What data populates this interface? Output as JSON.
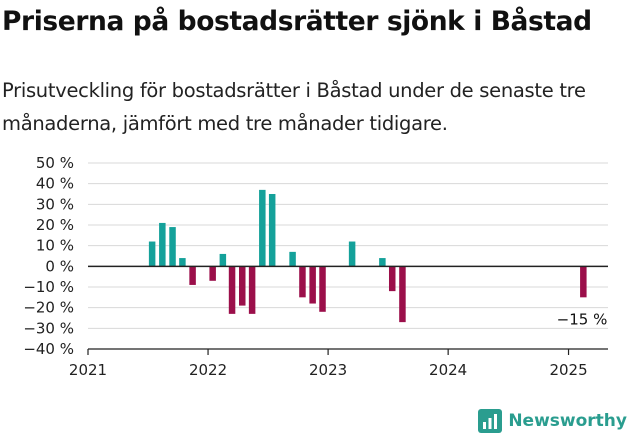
{
  "title": "Priserna på bostadsrätter sjönk i Båstad",
  "subtitle": "Prisutveckling för bostadsrätter i Båstad under de senaste tre månaderna, jämfört med tre månader tidigare.",
  "brand": {
    "name": "Newsworthy",
    "icon": "newsworthy-logo-icon",
    "color": "#2a9d8f"
  },
  "colors": {
    "positive": "#14a19a",
    "negative": "#9b0f4a",
    "grid": "#d8d8d8",
    "axis": "#222222"
  },
  "chart_data": {
    "type": "bar",
    "title": "Priserna på bostadsrätter sjönk i Båstad",
    "xlabel": "",
    "ylabel": "",
    "ylim": [
      -40,
      50
    ],
    "yticks": [
      50,
      40,
      30,
      20,
      10,
      0,
      -10,
      -20,
      -30,
      -40
    ],
    "ytick_labels": [
      "50 %",
      "40 %",
      "30 %",
      "20 %",
      "10 %",
      "0 %",
      "−10 %",
      "−20 %",
      "−30 %",
      "−40 %"
    ],
    "xlim": [
      "2021-01-01",
      "2025-05-01"
    ],
    "xticks": [
      "2021-01-01",
      "2022-01-01",
      "2023-01-01",
      "2024-01-01",
      "2025-01-01"
    ],
    "xtick_labels": [
      "2021",
      "2022",
      "2023",
      "2024",
      "2025"
    ],
    "grid": "horizontal",
    "unit": "%",
    "points": [
      {
        "date": "2021-07",
        "value": 12
      },
      {
        "date": "2021-08",
        "value": 21
      },
      {
        "date": "2021-09",
        "value": 19
      },
      {
        "date": "2021-10",
        "value": 4
      },
      {
        "date": "2021-11",
        "value": -9
      },
      {
        "date": "2022-01",
        "value": -7
      },
      {
        "date": "2022-02",
        "value": 6
      },
      {
        "date": "2022-03",
        "value": -23
      },
      {
        "date": "2022-04",
        "value": -19
      },
      {
        "date": "2022-05",
        "value": -23
      },
      {
        "date": "2022-06",
        "value": 37
      },
      {
        "date": "2022-07",
        "value": 35
      },
      {
        "date": "2022-09",
        "value": 7
      },
      {
        "date": "2022-10",
        "value": -15
      },
      {
        "date": "2022-11",
        "value": -18
      },
      {
        "date": "2022-12",
        "value": -22
      },
      {
        "date": "2023-03",
        "value": 12
      },
      {
        "date": "2023-06",
        "value": 4
      },
      {
        "date": "2023-07",
        "value": -12
      },
      {
        "date": "2023-08",
        "value": -27
      },
      {
        "date": "2025-02",
        "value": -15
      }
    ],
    "annotations": [
      {
        "date": "2025-02",
        "text": "−15 %"
      }
    ]
  }
}
